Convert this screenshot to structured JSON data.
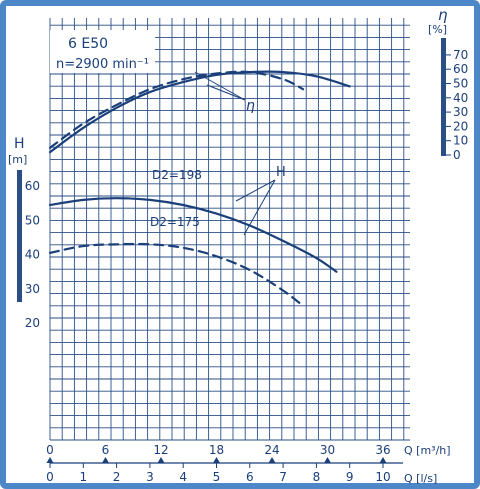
{
  "chart_data": {
    "type": "line",
    "title": "6 E50",
    "subtitle": "n=2900 min⁻¹",
    "x_axis_q_ls": {
      "label": "Q [l/s]",
      "ticks": [
        "0",
        "1",
        "2",
        "3",
        "4",
        "5",
        "6",
        "7",
        "8",
        "9",
        "10"
      ]
    },
    "x_axis_q_m3h": {
      "label": "Q [m³/h]",
      "ticks": [
        "0",
        "6",
        "12",
        "18",
        "24",
        "30",
        "36"
      ]
    },
    "y_axis_head": {
      "label": "H",
      "unit": "[m]",
      "ticks": [
        "20",
        "30",
        "40",
        "50",
        "60"
      ],
      "range": [
        20,
        60
      ]
    },
    "y_axis_efficiency": {
      "label": "η",
      "unit": "[%]",
      "ticks": [
        "0",
        "10",
        "20",
        "30",
        "40",
        "50",
        "60",
        "70"
      ],
      "range": [
        0,
        70
      ]
    },
    "annotations": {
      "efficiency_label": "η",
      "head_label": "H",
      "d198_label": "D2=198",
      "d175_label": "D2=175"
    },
    "series": [
      {
        "name": "D2=198",
        "quantity": "H",
        "style": "solid",
        "x": [
          0,
          1,
          2,
          3,
          4,
          5,
          6,
          7,
          8,
          8.6
        ],
        "y": [
          54.5,
          56,
          56.5,
          56,
          54.5,
          52,
          48.5,
          44,
          39,
          35
        ]
      },
      {
        "name": "D2=175",
        "quantity": "H",
        "style": "dashed",
        "x": [
          0,
          1,
          2,
          3,
          4,
          5,
          6,
          7,
          7.6
        ],
        "y": [
          40.5,
          42.5,
          43,
          43,
          42,
          39.5,
          35.5,
          29.5,
          25
        ]
      },
      {
        "name": "D2=198",
        "quantity": "η",
        "style": "solid",
        "x": [
          0,
          1,
          2,
          3,
          4,
          5,
          6,
          7,
          8,
          9
        ],
        "y": [
          2,
          19,
          33,
          44,
          51,
          56,
          58,
          58,
          55,
          48
        ]
      },
      {
        "name": "D2=175",
        "quantity": "η",
        "style": "dashed",
        "x": [
          0,
          1,
          2,
          3,
          4,
          5,
          6,
          7,
          7.6
        ],
        "y": [
          5,
          22,
          35,
          46,
          53,
          57,
          58,
          53,
          46
        ]
      }
    ],
    "grid": true
  },
  "colors": {
    "border": "#4d87c8",
    "grid": "#2a4f86",
    "ink": "#1a3f7a"
  }
}
